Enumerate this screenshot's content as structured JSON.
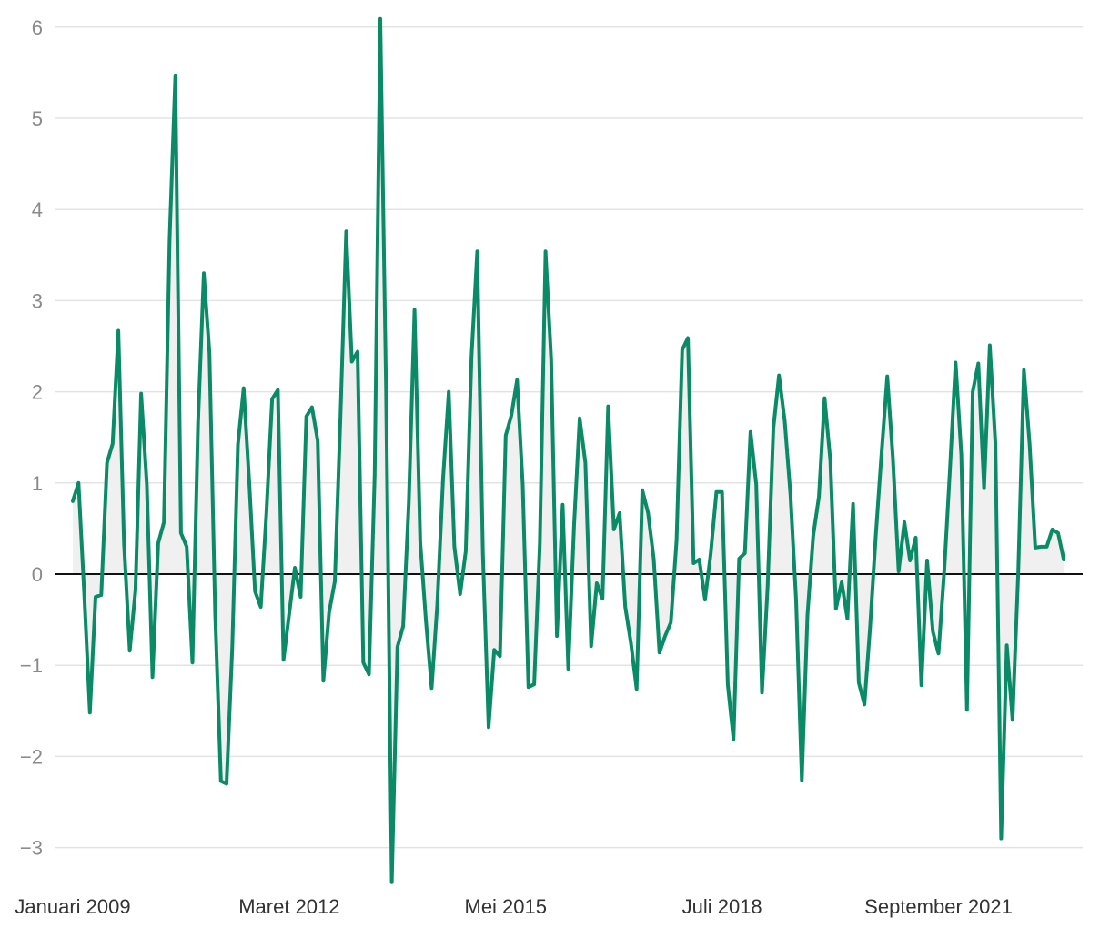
{
  "chart_data": {
    "type": "area",
    "title": "",
    "xlabel": "",
    "ylabel": "",
    "ylim": [
      -3.4,
      6.1
    ],
    "yticks": [
      6,
      5,
      4,
      3,
      2,
      1,
      0,
      -1,
      -2,
      -3
    ],
    "ytick_labels": [
      "6",
      "5",
      "4",
      "3",
      "2",
      "1",
      "0",
      "−1",
      "−2",
      "−3"
    ],
    "xtick_labels": [
      "Januari 2009",
      "Maret 2012",
      "Mei 2015",
      "Juli 2018",
      "September 2021"
    ],
    "xtick_months": [
      "2009-01",
      "2012-03",
      "2015-05",
      "2018-07",
      "2021-09"
    ],
    "grid": true,
    "legend": "none",
    "colors": {
      "line": "#0a8a66",
      "fill": "#f0f0f0",
      "zero_line": "#111111",
      "grid": "#e3e3e3"
    },
    "series": [
      {
        "start_month": "2009-01",
        "frequency": "monthly",
        "values": [
          0.8,
          1.0,
          -0.2,
          -1.52,
          -0.25,
          -0.23,
          1.22,
          1.43,
          2.67,
          0.34,
          -0.84,
          -0.18,
          1.98,
          0.98,
          -1.13,
          0.34,
          0.57,
          3.67,
          5.47,
          0.45,
          0.3,
          -0.97,
          1.67,
          3.3,
          2.43,
          -0.44,
          -2.27,
          -2.3,
          -0.8,
          1.42,
          2.04,
          0.98,
          -0.19,
          -0.36,
          0.67,
          1.92,
          2.02,
          -0.94,
          -0.43,
          0.07,
          -0.25,
          1.73,
          1.83,
          1.46,
          -1.17,
          -0.42,
          -0.08,
          1.73,
          3.76,
          2.33,
          2.44,
          -0.97,
          -1.1,
          1.09,
          6.09,
          2.03,
          -3.38,
          -0.8,
          -0.57,
          0.79,
          2.9,
          0.35,
          -0.51,
          -1.25,
          -0.33,
          1.04,
          2.0,
          0.3,
          -0.22,
          0.25,
          2.38,
          3.54,
          0.23,
          -1.68,
          -0.83,
          -0.9,
          1.52,
          1.74,
          2.13,
          0.98,
          -1.24,
          -1.21,
          0.33,
          3.54,
          2.35,
          -0.68,
          0.76,
          -1.04,
          0.53,
          1.71,
          1.22,
          -0.79,
          -0.1,
          -0.27,
          1.84,
          0.49,
          0.67,
          -0.36,
          -0.76,
          -1.26,
          0.92,
          0.67,
          0.17,
          -0.86,
          -0.68,
          -0.53,
          0.37,
          2.46,
          2.59,
          0.12,
          0.16,
          -0.28,
          0.22,
          0.9,
          0.9,
          -1.21,
          -1.81,
          0.17,
          0.23,
          1.56,
          0.98,
          -1.3,
          -0.14,
          1.6,
          2.18,
          1.68,
          0.87,
          -0.29,
          -2.26,
          -0.45,
          0.42,
          0.85,
          1.93,
          1.25,
          -0.38,
          -0.09,
          -0.49,
          0.77,
          -1.19,
          -1.43,
          -0.57,
          0.44,
          1.32,
          2.17,
          1.27,
          0.03,
          0.57,
          0.15,
          0.4,
          -1.22,
          0.15,
          -0.63,
          -0.87,
          0.03,
          1.13,
          2.32,
          1.31,
          -1.49,
          2.0,
          2.31,
          0.94,
          2.51,
          1.43,
          -2.9,
          -0.78,
          -1.6,
          0.03,
          2.24,
          1.42,
          0.29,
          0.3,
          0.3,
          0.49,
          0.45,
          0.16
        ]
      }
    ]
  }
}
